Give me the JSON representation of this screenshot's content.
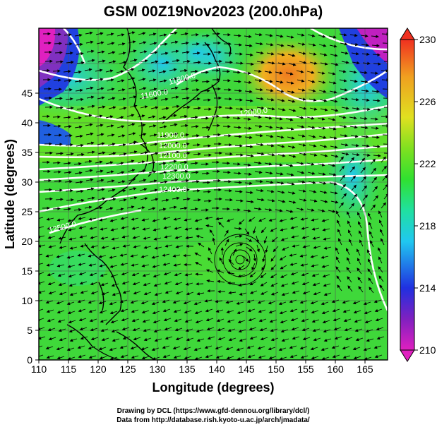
{
  "title": "GSM 00Z19Nov2023 (200.0hPa)",
  "x_axis": {
    "label": "Longitude (degrees)",
    "ticks": [
      "110",
      "115",
      "120",
      "125",
      "130",
      "135",
      "140",
      "145",
      "150",
      "155",
      "160",
      "165"
    ]
  },
  "y_axis": {
    "label": "Latitude  (degrees)",
    "ticks": [
      "0",
      "5",
      "10",
      "15",
      "20",
      "25",
      "30",
      "35",
      "40",
      "45"
    ]
  },
  "colorbar": {
    "ticks": [
      "210",
      "214",
      "218",
      "222",
      "226",
      "230"
    ],
    "colors": [
      "#e020c0",
      "#7030c0",
      "#2040e0",
      "#20c0f0",
      "#20e0a0",
      "#30e030",
      "#a0e020",
      "#f0e020",
      "#f0a020",
      "#f04020"
    ]
  },
  "contour_labels": [
    "11800.0",
    "11600.0",
    "12000.0",
    "11900.0",
    "12000.0",
    "12100.0",
    "12200.0",
    "12300.0",
    "12400.0",
    "12500.0"
  ],
  "credits": [
    "Drawing by DCL (https://www.gfd-dennou.org/library/dcl/)",
    "Data from http://database.rish.kyoto-u.ac.jp/arch/jmadata/"
  ]
}
